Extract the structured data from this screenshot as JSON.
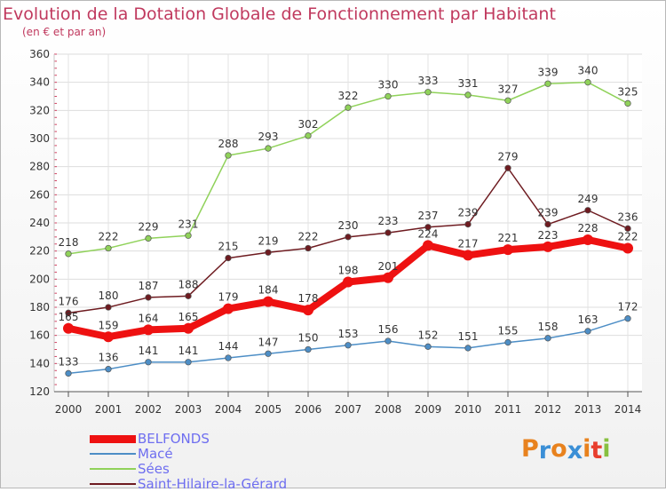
{
  "title": "Evolution de la Dotation Globale de Fonctionnement par Habitant",
  "subtitle": "(en € et par an)",
  "logo": {
    "text": "Proxiti",
    "colors": [
      "#e8821e",
      "#3b8fd6",
      "#e8821e",
      "#3b8fd6",
      "#e8821e",
      "#e83e2e",
      "#88c040"
    ]
  },
  "chart_data": {
    "type": "line",
    "title": "Evolution de la Dotation Globale de Fonctionnement par Habitant",
    "subtitle": "(en € et par an)",
    "x": [
      "2000",
      "2001",
      "2002",
      "2003",
      "2004",
      "2005",
      "2006",
      "2007",
      "2008",
      "2009",
      "2010",
      "2011",
      "2012",
      "2013",
      "2014"
    ],
    "ylim": [
      120,
      360
    ],
    "yticks": [
      120,
      140,
      160,
      180,
      200,
      220,
      240,
      260,
      280,
      300,
      320,
      340,
      360
    ],
    "grid": true,
    "legend_position": "bottom-left",
    "series": [
      {
        "name": "BELFONDS",
        "color": "#ee1111",
        "values": [
          165,
          159,
          164,
          165,
          179,
          184,
          178,
          198,
          201,
          224,
          217,
          221,
          223,
          228,
          222
        ]
      },
      {
        "name": "Macé",
        "color": "#4d8ec6",
        "values": [
          133,
          136,
          141,
          141,
          144,
          147,
          150,
          153,
          156,
          152,
          151,
          155,
          158,
          163,
          172
        ]
      },
      {
        "name": "Sées",
        "color": "#90d25a",
        "values": [
          218,
          222,
          229,
          231,
          288,
          293,
          302,
          322,
          330,
          333,
          331,
          327,
          339,
          340,
          325
        ]
      },
      {
        "name": "Saint-Hilaire-la-Gérard",
        "color": "#6e1b20",
        "values": [
          176,
          180,
          187,
          188,
          215,
          219,
          222,
          230,
          233,
          237,
          239,
          279,
          239,
          249,
          236
        ]
      }
    ]
  }
}
